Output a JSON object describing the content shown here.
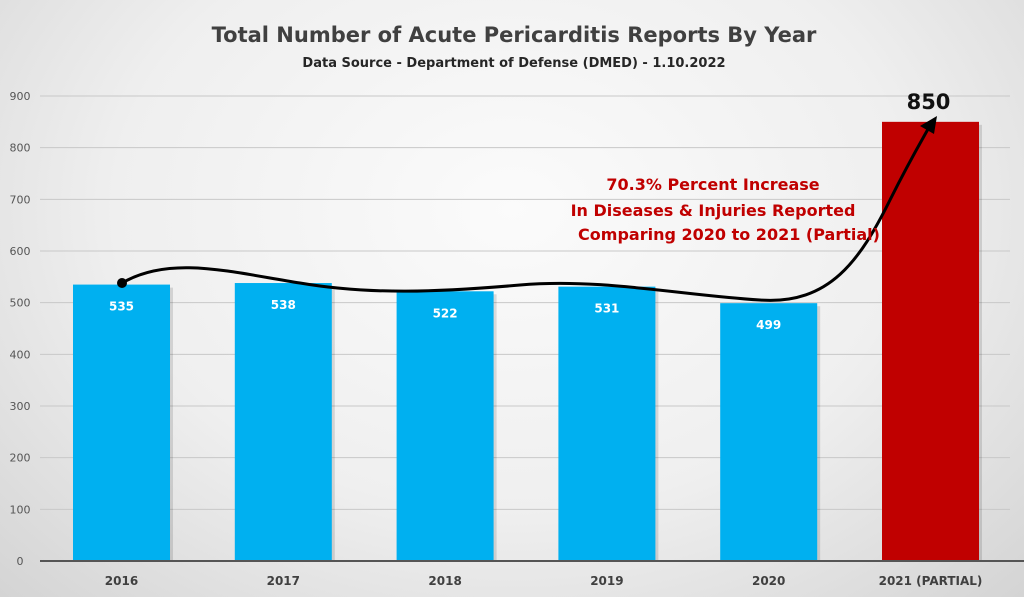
{
  "chart_data": {
    "type": "bar",
    "title": "Total Number of Acute Pericarditis Reports By Year",
    "subtitle": "Data Source - Department of Defense (DMED) - 1.10.2022",
    "categories": [
      "2016",
      "2017",
      "2018",
      "2019",
      "2020",
      "2021 (PARTIAL)"
    ],
    "values": [
      535,
      538,
      522,
      531,
      499,
      850
    ],
    "value_labels": [
      "535",
      "538",
      "522",
      "531",
      "499",
      "850"
    ],
    "bar_colors": [
      "#00b0f0",
      "#00b0f0",
      "#00b0f0",
      "#00b0f0",
      "#00b0f0",
      "#c00000"
    ],
    "ylim": [
      0,
      900
    ],
    "yticks": [
      "0",
      "100",
      "200",
      "300",
      "400",
      "500",
      "600",
      "700",
      "800",
      "900"
    ],
    "grid": true,
    "xlabel": "",
    "ylabel": "",
    "annotation": [
      "70.3% Percent Increase",
      "In Diseases & Injuries Reported",
      "Comparing 2020 to 2021 (Partial)"
    ]
  }
}
